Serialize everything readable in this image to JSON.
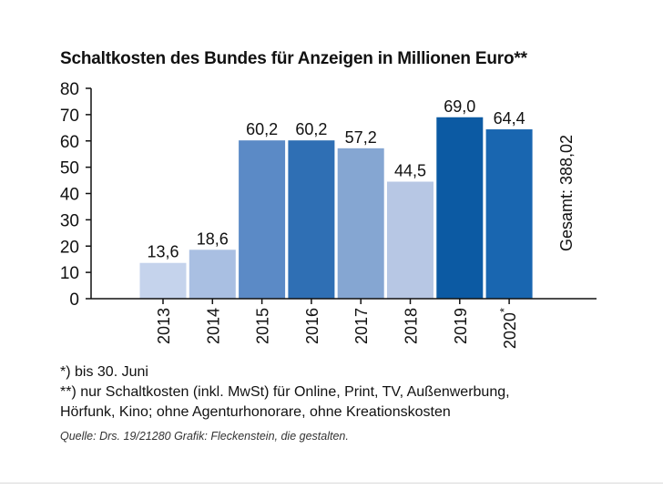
{
  "chart_data": {
    "type": "bar",
    "title": "Schaltkosten des Bundes für Anzeigen in Millionen Euro**",
    "categories": [
      "2013",
      "2014",
      "2015",
      "2016",
      "2017",
      "2018",
      "2019",
      "2020*"
    ],
    "values": [
      13.6,
      18.6,
      60.2,
      60.2,
      57.2,
      44.5,
      69.0,
      64.4
    ],
    "value_labels": [
      "13,6",
      "18,6",
      "60,2",
      "60,2",
      "57,2",
      "44,5",
      "69,0",
      "64,4"
    ],
    "bar_colors": [
      "#c5d3ec",
      "#a9bfe2",
      "#5b8ac6",
      "#2f6fb4",
      "#85a6d2",
      "#b7c7e4",
      "#0c5aa3",
      "#1966b0"
    ],
    "ylim": [
      0,
      80
    ],
    "yticks": [
      0,
      10,
      20,
      30,
      40,
      50,
      60,
      70,
      80
    ],
    "xlabel": "",
    "ylabel": "",
    "grid": false,
    "annotation": "Gesamt: 388,02"
  },
  "footnotes": [
    "*) bis 30. Juni",
    "**) nur Schaltkosten (inkl. MwSt) für Online, Print, TV, Außenwerbung,",
    "Hörfunk, Kino; ohne Agenturhonorare, ohne Kreationskosten"
  ],
  "source": "Quelle: Drs. 19/21280 Grafik: Fleckenstein, die gestalten."
}
